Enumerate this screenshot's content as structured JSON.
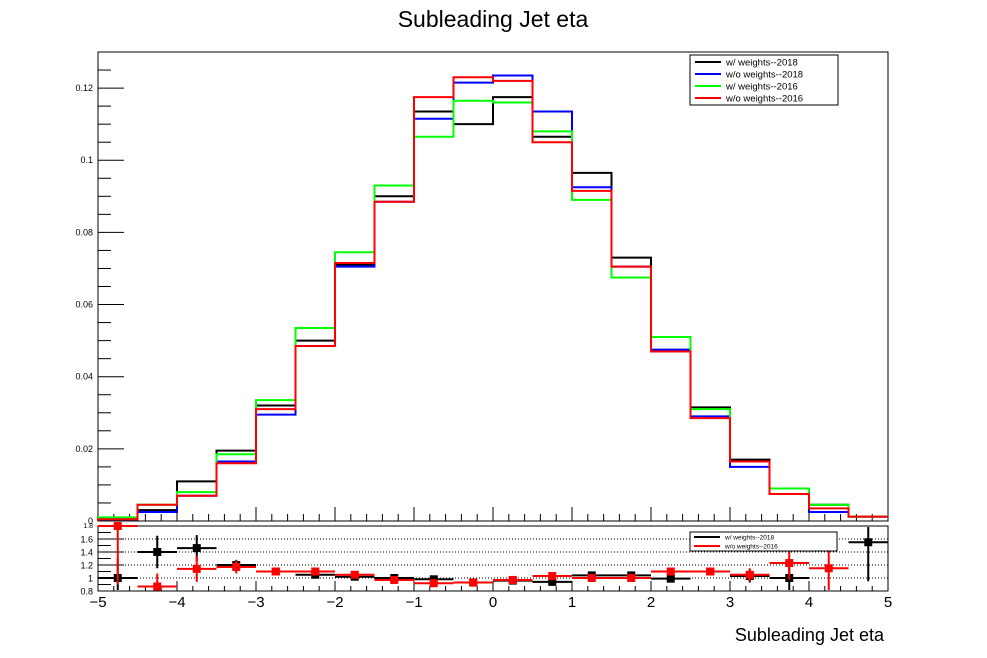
{
  "chart_data": [
    {
      "type": "line",
      "title": "Subleading Jet eta",
      "x_bin_edges": [
        -5,
        -4.5,
        -4,
        -3.5,
        -3,
        -2.5,
        -2,
        -1.5,
        -1,
        -0.5,
        0,
        0.5,
        1,
        1.5,
        2,
        2.5,
        3,
        3.5,
        4,
        4.5,
        5
      ],
      "xlim": [
        -5,
        5
      ],
      "ylim": [
        0,
        0.13
      ],
      "y_ticks": [
        "0",
        "0.02",
        "0.04",
        "0.06",
        "0.08",
        "0.1",
        "0.12"
      ],
      "legend_position": "top-right",
      "series": [
        {
          "name": "w/ weights--2018",
          "color": "#000000",
          "values": [
            0.0005,
            0.003,
            0.011,
            0.0195,
            0.032,
            0.05,
            0.071,
            0.09,
            0.1135,
            0.11,
            0.1175,
            0.1065,
            0.0965,
            0.073,
            0.047,
            0.0315,
            0.017,
            0.0075,
            0.0045,
            0.0012
          ]
        },
        {
          "name": "w/o weights--2018",
          "color": "#0000ff",
          "values": [
            0.0005,
            0.0025,
            0.007,
            0.0165,
            0.0295,
            0.0485,
            0.0705,
            0.0885,
            0.1115,
            0.1215,
            0.1235,
            0.1135,
            0.0925,
            0.0705,
            0.0475,
            0.029,
            0.015,
            0.0075,
            0.0025,
            0.0012
          ]
        },
        {
          "name": "w/ weights--2016",
          "color": "#00ff00",
          "values": [
            0.001,
            0.0045,
            0.008,
            0.0185,
            0.0335,
            0.0535,
            0.0745,
            0.093,
            0.1065,
            0.1165,
            0.116,
            0.108,
            0.089,
            0.0675,
            0.051,
            0.031,
            0.0165,
            0.009,
            0.0045,
            0.0012
          ]
        },
        {
          "name": "w/o weights--2016",
          "color": "#ff0000",
          "values": [
            0.0005,
            0.0045,
            0.007,
            0.016,
            0.031,
            0.0485,
            0.0715,
            0.0885,
            0.1175,
            0.123,
            0.122,
            0.105,
            0.0915,
            0.0705,
            0.047,
            0.0285,
            0.0165,
            0.0075,
            0.0035,
            0.0012
          ]
        }
      ]
    },
    {
      "type": "scatter",
      "xlabel": "Subleading Jet eta",
      "xlim": [
        -5,
        5
      ],
      "ylim": [
        0.8,
        1.8
      ],
      "x_ticks": [
        "−5",
        "−4",
        "−3",
        "−2",
        "−1",
        "0",
        "1",
        "2",
        "3",
        "4",
        "5"
      ],
      "y_ticks": [
        "0.8",
        "1",
        "1.2",
        "1.4",
        "1.6"
      ],
      "y_top_tick": "1.8",
      "reference_lines": [
        1.0,
        1.2,
        1.4,
        1.6
      ],
      "legend_position": "top-right",
      "series": [
        {
          "name": "w/ weights--2018",
          "color": "#000000",
          "x": [
            -4.75,
            -4.25,
            -3.75,
            -3.25,
            -2.75,
            -2.25,
            -1.75,
            -1.25,
            -0.75,
            -0.25,
            0.25,
            0.75,
            1.25,
            1.75,
            2.25,
            2.75,
            3.25,
            3.75,
            4.75
          ],
          "y": [
            1.0,
            1.4,
            1.46,
            1.2,
            1.1,
            1.05,
            1.02,
            1.0,
            0.98,
            0.93,
            0.96,
            0.94,
            1.04,
            1.04,
            0.99,
            1.1,
            1.03,
            1.0,
            1.55
          ],
          "err": [
            0.3,
            0.25,
            0.2,
            0.08,
            0.05,
            0.04,
            0.03,
            0.03,
            0.03,
            0.03,
            0.03,
            0.03,
            0.03,
            0.04,
            0.05,
            0.06,
            0.1,
            0.2,
            0.6
          ]
        },
        {
          "name": "w/o weights--2016",
          "color": "#ff0000",
          "x": [
            -4.75,
            -4.25,
            -3.75,
            -3.25,
            -2.75,
            -2.25,
            -1.75,
            -1.25,
            -0.75,
            -0.25,
            0.25,
            0.75,
            1.25,
            1.75,
            2.25,
            2.75,
            3.25,
            3.75,
            4.25
          ],
          "y": [
            1.8,
            0.87,
            1.14,
            1.17,
            1.1,
            1.1,
            1.05,
            0.97,
            0.92,
            0.93,
            0.97,
            1.03,
            1.0,
            1.0,
            1.1,
            1.1,
            1.05,
            1.23,
            1.15
          ],
          "err": [
            0.9,
            0.2,
            0.2,
            0.1,
            0.05,
            0.04,
            0.03,
            0.03,
            0.03,
            0.03,
            0.03,
            0.03,
            0.03,
            0.04,
            0.05,
            0.06,
            0.1,
            0.25,
            0.35
          ]
        }
      ]
    }
  ]
}
